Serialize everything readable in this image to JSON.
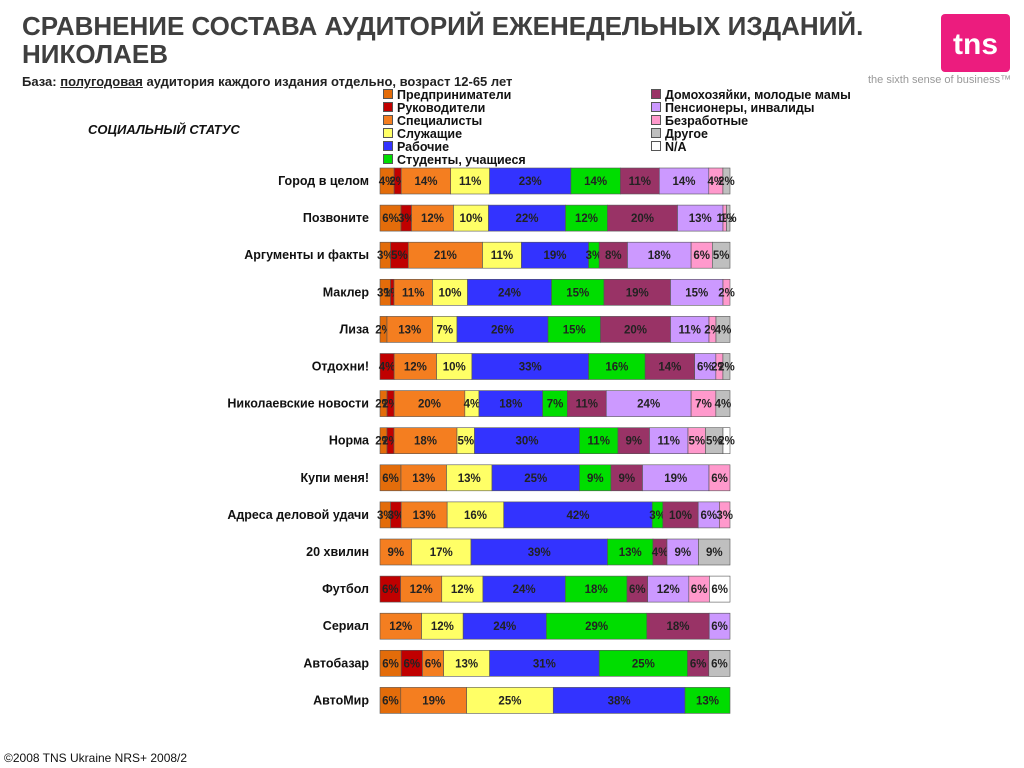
{
  "header": {
    "title": "СРАВНЕНИЕ СОСТАВА АУДИТОРИЙ ЕЖЕНЕДЕЛЬНЫХ ИЗДАНИЙ.\nНИКОЛАЕВ",
    "base_label": "База:",
    "base_underlined": "полугодовая",
    "base_rest": "аудитория каждого издания отдельно, возраст 12-65 лет",
    "subtitle": "СОЦИАЛЬНЫЙ СТАТУС"
  },
  "logo": {
    "text": "tns",
    "tagline": "the sixth sense of business™",
    "color": "#ec1c7e"
  },
  "footer": "©2008 TNS Ukraine  NRS+ 2008/2",
  "chart_data": {
    "type": "bar",
    "orientation": "horizontal",
    "stacked": true,
    "value_format": "percent",
    "categories": [
      "Город в целом",
      "Позвоните",
      "Аргументы и факты",
      "Маклер",
      "Лиза",
      "Отдохни!",
      "Николаевские новости",
      "Норма",
      "Купи меня!",
      "Адреса деловой удачи",
      "20 хвилин",
      "Футбол",
      "Сериал",
      "Автобазар",
      "АвтоМир"
    ],
    "series": [
      {
        "name": "Предприниматели",
        "color": "#e36c0a",
        "values": [
          4,
          6,
          3,
          3,
          2,
          0,
          2,
          2,
          6,
          3,
          0,
          0,
          0,
          6,
          6
        ]
      },
      {
        "name": "Руководители",
        "color": "#c00000",
        "values": [
          2,
          3,
          5,
          1,
          0,
          4,
          2,
          2,
          0,
          3,
          0,
          6,
          0,
          6,
          0
        ]
      },
      {
        "name": "Специалисты",
        "color": "#f47e20",
        "values": [
          14,
          12,
          21,
          11,
          13,
          12,
          20,
          18,
          13,
          13,
          9,
          12,
          12,
          6,
          19
        ]
      },
      {
        "name": "Служащие",
        "color": "#ffff66",
        "values": [
          11,
          10,
          11,
          10,
          7,
          10,
          4,
          5,
          13,
          16,
          17,
          12,
          12,
          13,
          25
        ]
      },
      {
        "name": "Рабочие",
        "color": "#3333ff",
        "values": [
          23,
          22,
          19,
          24,
          26,
          33,
          18,
          30,
          25,
          42,
          39,
          24,
          24,
          31,
          38
        ]
      },
      {
        "name": "Студенты, учащиеся",
        "color": "#00dd00",
        "values": [
          14,
          12,
          3,
          15,
          15,
          16,
          7,
          11,
          9,
          3,
          13,
          18,
          29,
          25,
          13
        ]
      },
      {
        "name": "Домохозяйки, молодые мамы",
        "color": "#993366",
        "values": [
          11,
          20,
          8,
          19,
          20,
          14,
          11,
          9,
          9,
          10,
          4,
          6,
          18,
          6,
          0
        ]
      },
      {
        "name": "Пенсионеры, инвалиды",
        "color": "#cc99ff",
        "values": [
          14,
          13,
          18,
          15,
          11,
          6,
          24,
          11,
          19,
          6,
          9,
          12,
          6,
          0,
          0
        ]
      },
      {
        "name": "Безработные",
        "color": "#ff99cc",
        "values": [
          4,
          1,
          6,
          2,
          2,
          2,
          7,
          5,
          6,
          3,
          0,
          6,
          0,
          0,
          0
        ]
      },
      {
        "name": "Другое",
        "color": "#bfbfbf",
        "values": [
          2,
          1,
          5,
          0,
          4,
          2,
          4,
          5,
          0,
          0,
          9,
          0,
          0,
          6,
          0
        ]
      },
      {
        "name": "N/A",
        "color": "#ffffff",
        "values": [
          0,
          0,
          0,
          0,
          0,
          0,
          0,
          2,
          0,
          0,
          0,
          6,
          0,
          0,
          0
        ]
      }
    ]
  }
}
